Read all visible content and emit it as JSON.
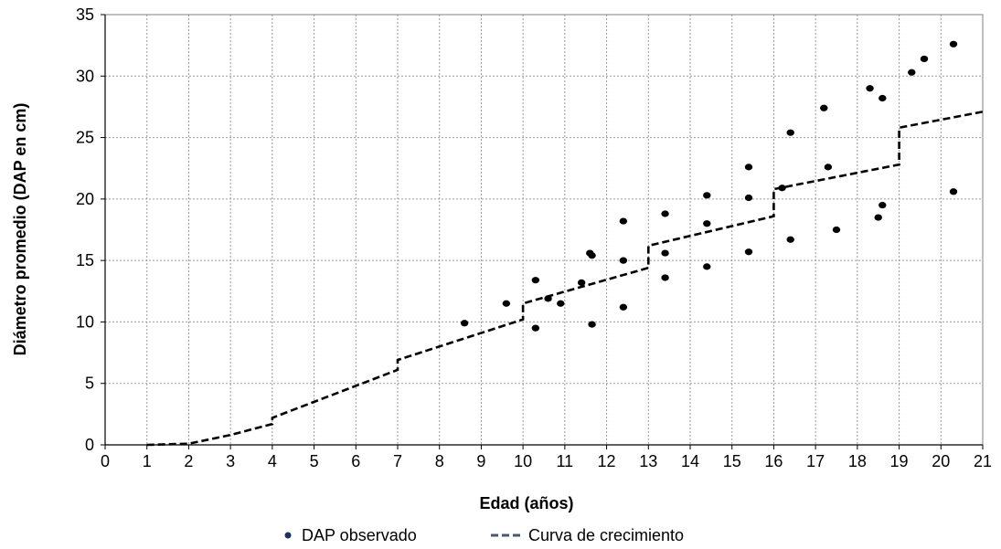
{
  "chart_data": {
    "type": "scatter",
    "xlabel": "Edad (años)",
    "ylabel": "Diámetro promedio (DAP en cm)",
    "xlim": [
      0,
      21
    ],
    "ylim": [
      0,
      35
    ],
    "x_ticks": [
      "0",
      "1",
      "2",
      "3",
      "4",
      "5",
      "6",
      "7",
      "8",
      "9",
      "10",
      "11",
      "12",
      "13",
      "14",
      "15",
      "16",
      "17",
      "18",
      "19",
      "20",
      "21"
    ],
    "y_ticks": [
      "0",
      "5",
      "10",
      "15",
      "20",
      "25",
      "30",
      "35"
    ],
    "grid": {
      "vertical": true,
      "horizontal": true,
      "style": "dotted"
    },
    "legend_position": "bottom",
    "series": [
      {
        "name": "DAP observado",
        "kind": "scatter",
        "color": "#000000",
        "points": [
          [
            8.6,
            9.9
          ],
          [
            9.6,
            11.5
          ],
          [
            10.3,
            13.4
          ],
          [
            10.3,
            9.5
          ],
          [
            10.6,
            11.9
          ],
          [
            10.9,
            11.5
          ],
          [
            11.4,
            13.2
          ],
          [
            11.6,
            15.6
          ],
          [
            11.65,
            15.4
          ],
          [
            11.65,
            9.8
          ],
          [
            12.4,
            18.2
          ],
          [
            12.4,
            15.0
          ],
          [
            12.4,
            11.2
          ],
          [
            13.4,
            18.8
          ],
          [
            13.4,
            15.6
          ],
          [
            13.4,
            13.6
          ],
          [
            14.4,
            20.3
          ],
          [
            14.4,
            18.0
          ],
          [
            14.4,
            14.5
          ],
          [
            15.4,
            22.6
          ],
          [
            15.4,
            20.1
          ],
          [
            15.4,
            15.7
          ],
          [
            16.2,
            20.9
          ],
          [
            16.4,
            25.4
          ],
          [
            16.4,
            16.7
          ],
          [
            17.2,
            27.4
          ],
          [
            17.3,
            22.6
          ],
          [
            17.5,
            17.5
          ],
          [
            18.3,
            29.0
          ],
          [
            18.5,
            18.5
          ],
          [
            18.6,
            28.2
          ],
          [
            18.6,
            19.5
          ],
          [
            19.3,
            30.3
          ],
          [
            19.6,
            31.4
          ],
          [
            20.3,
            32.6
          ],
          [
            20.3,
            20.6
          ]
        ]
      },
      {
        "name": "Curva de crecimiento",
        "kind": "line",
        "style": "dashed",
        "color": "#000000",
        "points": [
          [
            1,
            0
          ],
          [
            2,
            0.1
          ],
          [
            3,
            0.8
          ],
          [
            4,
            1.7
          ],
          [
            4,
            2.2
          ],
          [
            7,
            6.1
          ],
          [
            7,
            6.9
          ],
          [
            10,
            10.2
          ],
          [
            10,
            11.5
          ],
          [
            13,
            14.4
          ],
          [
            13,
            16.2
          ],
          [
            16,
            18.6
          ],
          [
            16,
            20.8
          ],
          [
            19,
            22.8
          ],
          [
            19,
            25.8
          ],
          [
            21,
            27.1
          ]
        ]
      }
    ]
  }
}
